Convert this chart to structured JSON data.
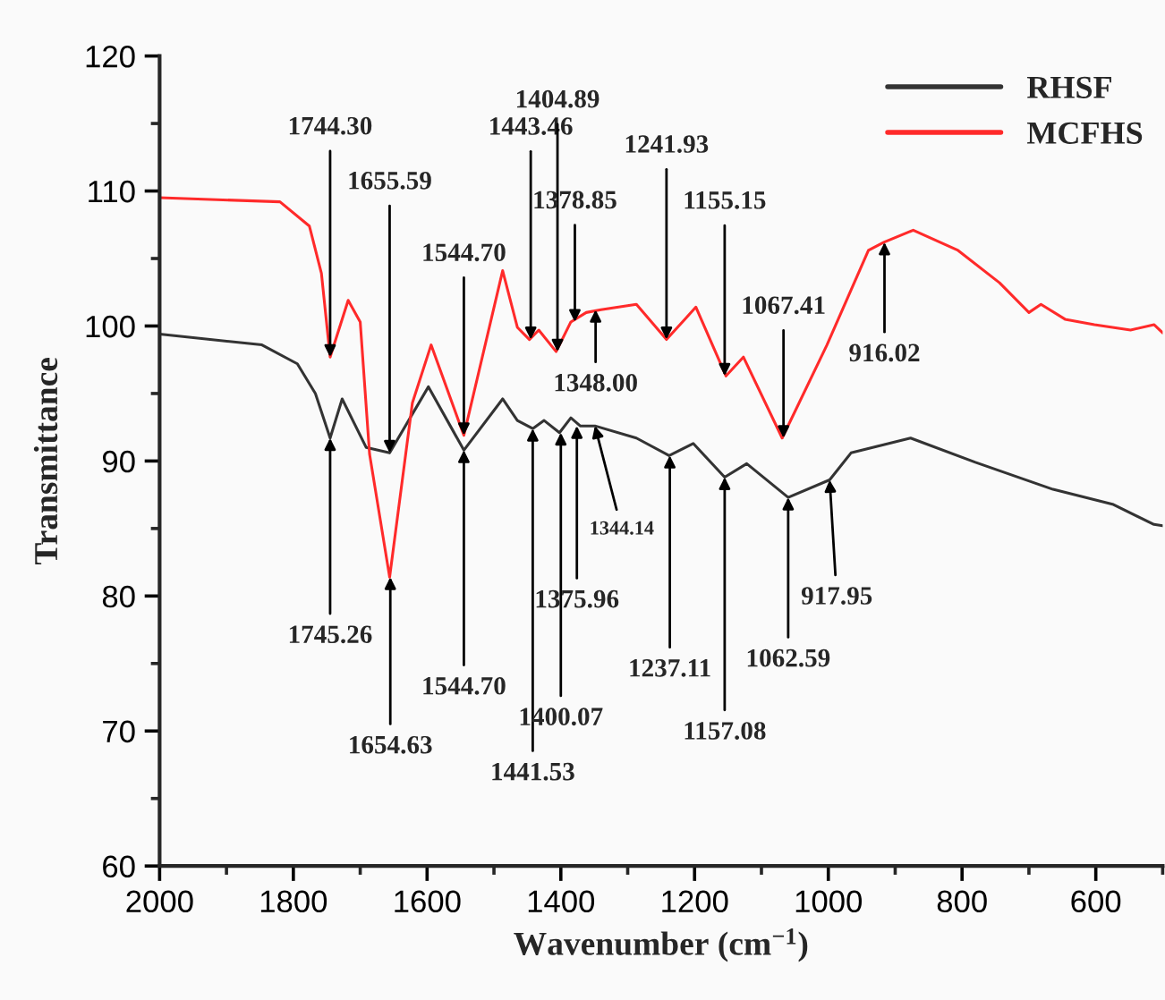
{
  "chart_data": {
    "type": "line",
    "xlabel": "Wavenumber (cm$^{−1}$)",
    "ylabel": "Transmittance",
    "xlim": [
      2000,
      500
    ],
    "ylim": [
      60,
      120
    ],
    "xticks": [
      2000,
      {
        "value": 1900,
        "label": null
      },
      1800,
      {
        "value": 1700,
        "label": null
      },
      1600,
      {
        "value": 1500,
        "label": null
      },
      1400,
      {
        "value": 1300,
        "label": null
      },
      1200,
      {
        "value": 1100,
        "label": null
      },
      1000,
      {
        "value": 900,
        "label": null
      },
      800,
      {
        "value": 700,
        "label": null
      },
      600,
      {
        "value": 500,
        "label": null
      }
    ],
    "yticks": [
      60,
      {
        "value": 65,
        "label": null
      },
      70,
      {
        "value": 75,
        "label": null
      },
      80,
      {
        "value": 85,
        "label": null
      },
      90,
      {
        "value": 95,
        "label": null
      },
      100,
      {
        "value": 105,
        "label": null
      },
      110,
      {
        "value": 115,
        "label": null
      },
      120
    ],
    "legend": "top right",
    "grid": false,
    "marker": "none",
    "line_style": "solid",
    "series": [
      {
        "name": "RHSF",
        "color": "#333333",
        "x": [
          2000,
          1847,
          1794,
          1767,
          1745,
          1727,
          1691,
          1656,
          1598,
          1545,
          1487,
          1465,
          1442,
          1425,
          1402,
          1385,
          1371,
          1349,
          1287,
          1238,
          1202,
          1155,
          1122,
          1060,
          998,
          966,
          877,
          780,
          664,
          575,
          513,
          500
        ],
        "values": [
          99.4,
          98.6,
          97.2,
          95.0,
          91.7,
          94.6,
          91.0,
          90.6,
          95.5,
          90.8,
          94.6,
          93.0,
          92.4,
          93.0,
          92.1,
          93.2,
          92.6,
          92.6,
          91.7,
          90.4,
          91.3,
          88.8,
          89.8,
          87.3,
          88.6,
          90.6,
          91.7,
          89.9,
          87.9,
          86.8,
          85.3,
          85.2
        ]
      },
      {
        "name": "MCFHS",
        "color": "#ff2a2a",
        "x": [
          2000,
          1820,
          1776,
          1758,
          1745,
          1718,
          1700,
          1686,
          1656,
          1622,
          1594,
          1545,
          1487,
          1465,
          1447,
          1433,
          1407,
          1385,
          1362,
          1340,
          1287,
          1242,
          1198,
          1153,
          1127,
          1069,
          1002,
          940,
          917,
          873,
          806,
          744,
          700,
          682,
          646,
          602,
          548,
          513,
          500
        ],
        "values": [
          109.5,
          109.2,
          107.4,
          103.9,
          97.7,
          101.9,
          100.3,
          90.5,
          81.4,
          94.3,
          98.6,
          91.9,
          104.1,
          99.9,
          99.0,
          99.7,
          98.1,
          100.3,
          101.0,
          101.2,
          101.6,
          99.0,
          101.4,
          96.3,
          97.7,
          91.7,
          98.6,
          105.6,
          106.2,
          107.1,
          105.6,
          103.2,
          101.0,
          101.6,
          100.5,
          100.1,
          99.7,
          100.1,
          99.5
        ]
      }
    ],
    "annotations": [
      {
        "text": "1744.30",
        "x": 1745,
        "y": 97.7
      },
      {
        "text": "1655.59",
        "x": 1656,
        "y": 90.6
      },
      {
        "text": "1544.70",
        "x": 1545,
        "y": 91.9
      },
      {
        "text": "1443.46",
        "x": 1445,
        "y": 99.0
      },
      {
        "text": "1404.89",
        "x": 1405,
        "y": 98.1
      },
      {
        "text": "1378.85",
        "x": 1379,
        "y": 100.3
      },
      {
        "text": "1348.00",
        "x": 1348,
        "y": 101.2
      },
      {
        "text": "1241.93",
        "x": 1242,
        "y": 99.0
      },
      {
        "text": "1155.15",
        "x": 1155,
        "y": 96.3
      },
      {
        "text": "1067.41",
        "x": 1067,
        "y": 91.7
      },
      {
        "text": "916.02",
        "x": 916,
        "y": 106.2
      },
      {
        "text": "1745.26",
        "x": 1745,
        "y": 91.7
      },
      {
        "text": "1654.63",
        "x": 1655,
        "y": 81.4
      },
      {
        "text": "1544.70",
        "x": 1545,
        "y": 90.8
      },
      {
        "text": "1441.53",
        "x": 1442,
        "y": 92.4
      },
      {
        "text": "1400.07",
        "x": 1400,
        "y": 92.1
      },
      {
        "text": "1375.96",
        "x": 1376,
        "y": 92.6
      },
      {
        "text": "1344.14",
        "x": 1349,
        "y": 92.6
      },
      {
        "text": "1237.11",
        "x": 1237,
        "y": 90.4
      },
      {
        "text": "1157.08",
        "x": 1155,
        "y": 88.8
      },
      {
        "text": "1062.59",
        "x": 1060,
        "y": 87.3
      },
      {
        "text": "917.95",
        "x": 998,
        "y": 88.6
      }
    ]
  }
}
